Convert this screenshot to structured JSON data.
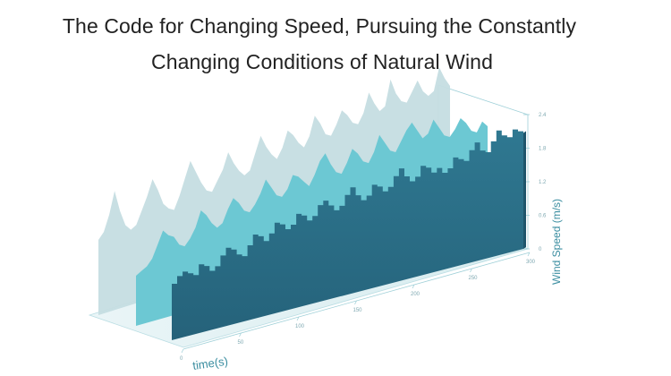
{
  "chart_data": {
    "type": "area",
    "title": "The Code for Changing Speed, Pursuing the Constantly Changing Conditions of Natural Wind",
    "title_lines": [
      "The Code for Changing Speed, Pursuing the Constantly",
      "Changing Conditions of Natural Wind"
    ],
    "xlabel": "time(s)",
    "ylabel": "Wind Speed (m/s)",
    "x_ticks": [
      "0",
      "50",
      "100",
      "150",
      "200",
      "250",
      "300"
    ],
    "y_ticks": [
      "0",
      "0.6",
      "1.2",
      "1.8",
      "2.4"
    ],
    "xlim": [
      0,
      300
    ],
    "ylim": [
      0,
      2.4
    ],
    "colors": [
      "#c5dde1",
      "#6cc8d3",
      "#2b6f86"
    ],
    "series": [
      {
        "values": [
          1.2,
          1.3,
          1.55,
          1.9,
          1.55,
          1.3,
          1.2,
          1.25,
          1.45,
          1.65,
          1.9,
          1.7,
          1.45,
          1.35,
          1.3,
          1.5,
          1.75,
          2.0,
          1.8,
          1.6,
          1.45,
          1.4,
          1.55,
          1.7,
          1.95,
          1.75,
          1.6,
          1.5,
          1.55,
          1.8,
          2.05,
          1.85,
          1.7,
          1.6,
          1.75,
          2.0,
          1.9,
          1.75,
          1.65,
          1.8,
          2.1,
          1.95,
          1.75,
          1.7,
          1.85,
          2.05,
          1.95,
          1.8,
          1.75,
          1.9,
          2.2,
          2.0,
          1.85,
          1.9,
          2.3,
          2.05,
          1.9,
          1.85,
          2.0,
          2.15,
          1.95,
          1.85,
          1.9,
          2.25,
          2.05,
          1.9
        ]
      },
      {
        "values": [
          0.8,
          0.85,
          0.9,
          1.0,
          1.2,
          1.4,
          1.3,
          1.25,
          1.1,
          1.05,
          1.15,
          1.3,
          1.55,
          1.45,
          1.3,
          1.2,
          1.25,
          1.45,
          1.6,
          1.5,
          1.35,
          1.3,
          1.4,
          1.55,
          1.75,
          1.6,
          1.45,
          1.4,
          1.5,
          1.7,
          1.65,
          1.55,
          1.45,
          1.6,
          1.8,
          1.9,
          1.7,
          1.55,
          1.5,
          1.65,
          1.85,
          1.75,
          1.6,
          1.55,
          1.7,
          1.95,
          1.8,
          1.65,
          1.6,
          1.75,
          1.9,
          2.0,
          1.85,
          1.7,
          1.75,
          1.95,
          1.8,
          1.65,
          1.6,
          1.7,
          1.85,
          1.75,
          1.6,
          1.55,
          1.7,
          1.6
        ]
      },
      {
        "values": [
          0.9,
          1.0,
          1.05,
          1.0,
          0.95,
          1.1,
          1.05,
          0.95,
          1.0,
          1.15,
          1.25,
          1.2,
          1.1,
          1.05,
          1.2,
          1.35,
          1.3,
          1.2,
          1.3,
          1.45,
          1.4,
          1.3,
          1.35,
          1.5,
          1.45,
          1.35,
          1.4,
          1.55,
          1.6,
          1.5,
          1.4,
          1.45,
          1.6,
          1.7,
          1.55,
          1.45,
          1.5,
          1.65,
          1.6,
          1.5,
          1.55,
          1.7,
          1.8,
          1.65,
          1.55,
          1.6,
          1.75,
          1.7,
          1.6,
          1.65,
          1.55,
          1.6,
          1.75,
          1.7,
          1.65,
          1.8,
          1.9,
          1.75,
          1.7,
          1.85,
          2.0,
          1.9,
          1.85,
          1.95,
          1.9,
          1.85
        ]
      }
    ],
    "grid": false,
    "legend": "none"
  }
}
